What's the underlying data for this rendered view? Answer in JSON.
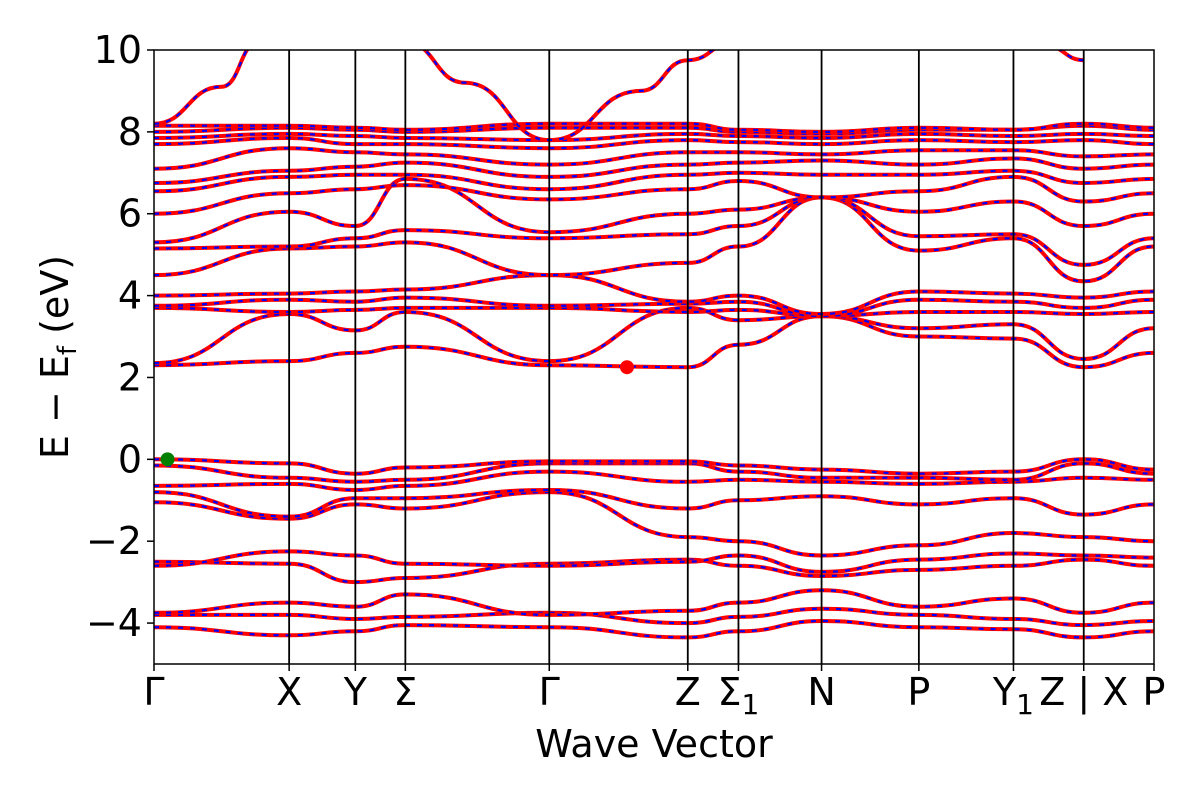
{
  "chart_data": {
    "type": "line",
    "xlabel": "Wave Vector",
    "ylabel": "E − E",
    "ylabel_sub": "f",
    "ylabel_unit": " (eV)",
    "ylim": [
      -5,
      10
    ],
    "yticks": [
      {
        "value": 10,
        "label": "10"
      },
      {
        "value": 8,
        "label": "8"
      },
      {
        "value": 6,
        "label": "6"
      },
      {
        "value": 4,
        "label": "4"
      },
      {
        "value": 2,
        "label": "2"
      },
      {
        "value": 0,
        "label": "0"
      },
      {
        "value": -2,
        "label": "−2"
      },
      {
        "value": -4,
        "label": "−4"
      }
    ],
    "xlim": [
      0,
      14.8
    ],
    "kpoints": [
      {
        "k": 0.0,
        "label": "Γ",
        "sub": ""
      },
      {
        "k": 2.0,
        "label": "X",
        "sub": ""
      },
      {
        "k": 2.98,
        "label": "Y",
        "sub": ""
      },
      {
        "k": 3.72,
        "label": "Σ",
        "sub": ""
      },
      {
        "k": 5.85,
        "label": "Γ",
        "sub": ""
      },
      {
        "k": 7.9,
        "label": "Z",
        "sub": ""
      },
      {
        "k": 8.65,
        "label": "Σ",
        "sub": "1"
      },
      {
        "k": 9.88,
        "label": "N",
        "sub": ""
      },
      {
        "k": 11.32,
        "label": "P",
        "sub": ""
      },
      {
        "k": 12.72,
        "label": "Y",
        "sub": "1"
      },
      {
        "k": 13.76,
        "label": "Z | X",
        "sub": ""
      },
      {
        "k": 14.8,
        "label": "P",
        "sub": ""
      }
    ],
    "bands": [
      {
        "k": [
          0,
          2.0,
          2.98,
          3.72,
          5.85,
          7.9,
          8.65,
          9.88,
          11.32,
          12.72,
          13.76,
          14.8
        ],
        "E": [
          -4.1,
          -4.3,
          -4.2,
          -4.05,
          -4.1,
          -4.35,
          -4.2,
          -3.95,
          -4.1,
          -4.15,
          -4.35,
          -4.2
        ]
      },
      {
        "k": [
          0,
          2.0,
          2.98,
          3.72,
          5.85,
          7.9,
          8.65,
          9.88,
          11.32,
          12.72,
          13.76,
          14.8
        ],
        "E": [
          -3.8,
          -3.8,
          -3.9,
          -3.85,
          -3.75,
          -4.0,
          -3.85,
          -3.65,
          -3.8,
          -3.9,
          -4.05,
          -3.95
        ]
      },
      {
        "k": [
          0,
          2.0,
          2.98,
          3.72,
          5.85,
          7.9,
          8.65,
          9.88,
          11.32,
          12.72,
          13.76,
          14.8
        ],
        "E": [
          -3.75,
          -3.5,
          -3.6,
          -3.3,
          -3.8,
          -3.7,
          -3.5,
          -3.2,
          -3.6,
          -3.4,
          -3.75,
          -3.5
        ]
      },
      {
        "k": [
          0,
          2.0,
          2.98,
          3.72,
          5.85,
          7.9,
          8.65,
          9.88,
          11.32,
          12.72,
          13.76,
          14.8
        ],
        "E": [
          -2.5,
          -2.55,
          -3.0,
          -2.9,
          -2.55,
          -2.45,
          -2.6,
          -2.85,
          -2.7,
          -2.6,
          -2.45,
          -2.6
        ]
      },
      {
        "k": [
          0,
          2.0,
          2.98,
          3.72,
          5.85,
          7.9,
          8.65,
          9.88,
          11.32,
          12.72,
          13.76,
          14.8
        ],
        "E": [
          -2.6,
          -2.25,
          -2.35,
          -2.55,
          -2.6,
          -2.5,
          -2.35,
          -2.75,
          -2.45,
          -2.3,
          -2.35,
          -2.4
        ]
      },
      {
        "k": [
          0,
          2.0,
          2.98,
          3.72,
          5.85,
          7.9,
          8.65,
          9.88,
          11.32,
          12.72,
          13.76,
          14.8
        ],
        "E": [
          -1.05,
          -1.45,
          -1.1,
          -1.2,
          -0.8,
          -1.9,
          -2.0,
          -2.35,
          -2.1,
          -1.8,
          -1.9,
          -2.0
        ]
      },
      {
        "k": [
          0,
          2.0,
          2.98,
          3.72,
          5.85,
          7.9,
          8.65,
          9.88,
          11.32,
          12.72,
          13.76,
          14.8
        ],
        "E": [
          -0.8,
          -1.4,
          -0.95,
          -0.95,
          -0.75,
          -1.2,
          -1.0,
          -0.9,
          -1.1,
          -0.95,
          -1.35,
          -1.1
        ]
      },
      {
        "k": [
          0,
          2.0,
          2.98,
          3.72,
          5.85,
          7.9,
          8.65,
          9.88,
          11.32,
          12.72,
          13.76,
          14.8
        ],
        "E": [
          -0.65,
          -0.6,
          -0.75,
          -0.65,
          -0.3,
          -0.55,
          -0.5,
          -0.55,
          -0.6,
          -0.55,
          -0.45,
          -0.5
        ]
      },
      {
        "k": [
          0,
          2.0,
          2.98,
          3.72,
          5.85,
          7.9,
          8.65,
          9.88,
          11.32,
          12.72,
          13.76,
          14.8
        ],
        "E": [
          -0.15,
          -0.45,
          -0.55,
          -0.5,
          -0.1,
          -0.1,
          -0.3,
          -0.45,
          -0.45,
          -0.5,
          -0.1,
          -0.35
        ]
      },
      {
        "k": [
          0,
          2.0,
          2.98,
          3.72,
          5.85,
          7.9,
          8.65,
          9.88,
          11.32,
          12.72,
          13.76,
          14.8
        ],
        "E": [
          0.0,
          -0.1,
          -0.35,
          -0.2,
          -0.05,
          -0.05,
          -0.15,
          -0.25,
          -0.35,
          -0.3,
          0.0,
          -0.25
        ]
      },
      {
        "k": [
          0,
          2.0,
          2.98,
          3.72,
          5.85,
          7.9,
          8.65,
          9.88,
          11.32,
          12.72,
          13.76,
          14.8
        ],
        "E": [
          2.3,
          2.4,
          2.6,
          2.75,
          2.3,
          2.25,
          2.8,
          3.5,
          3.0,
          2.95,
          2.25,
          2.6
        ]
      },
      {
        "k": [
          0,
          2.0,
          2.98,
          3.72,
          5.85,
          7.9,
          8.65,
          9.88,
          11.32,
          12.72,
          13.76,
          14.8
        ],
        "E": [
          2.35,
          3.55,
          3.15,
          3.6,
          2.4,
          3.7,
          3.4,
          3.5,
          3.2,
          3.3,
          2.45,
          3.2
        ]
      },
      {
        "k": [
          0,
          2.0,
          2.98,
          3.72,
          5.85,
          7.9,
          8.65,
          9.88,
          11.32,
          12.72,
          13.76,
          14.8
        ],
        "E": [
          3.7,
          3.6,
          3.65,
          3.7,
          3.7,
          3.6,
          3.65,
          3.5,
          3.6,
          3.6,
          3.55,
          3.6
        ]
      },
      {
        "k": [
          0,
          2.0,
          2.98,
          3.72,
          5.85,
          7.9,
          8.65,
          9.88,
          11.32,
          12.72,
          13.76,
          14.8
        ],
        "E": [
          3.75,
          3.9,
          3.85,
          3.95,
          3.75,
          3.8,
          3.85,
          3.5,
          3.9,
          3.85,
          3.7,
          3.9
        ]
      },
      {
        "k": [
          0,
          2.0,
          2.98,
          3.72,
          5.85,
          7.9,
          8.65,
          9.88,
          11.32,
          12.72,
          13.76,
          14.8
        ],
        "E": [
          4.0,
          4.05,
          4.1,
          4.15,
          4.5,
          3.85,
          4.0,
          3.55,
          4.1,
          4.05,
          3.95,
          4.1
        ]
      },
      {
        "k": [
          0,
          2.0,
          2.98,
          3.72,
          5.85,
          7.9,
          8.65,
          9.88,
          11.32,
          12.72,
          13.76,
          14.8
        ],
        "E": [
          4.5,
          5.15,
          5.2,
          5.3,
          4.5,
          4.8,
          5.2,
          6.4,
          5.1,
          5.4,
          4.35,
          5.2
        ]
      },
      {
        "k": [
          0,
          2.0,
          2.98,
          3.72,
          5.85,
          7.9,
          8.65,
          9.88,
          11.32,
          12.72,
          13.76,
          14.8
        ],
        "E": [
          5.15,
          5.2,
          5.4,
          5.6,
          5.4,
          5.5,
          5.7,
          6.4,
          5.45,
          5.5,
          4.75,
          5.4
        ]
      },
      {
        "k": [
          0,
          2.0,
          2.98,
          3.72,
          5.85,
          7.9,
          8.65,
          9.88,
          11.32,
          12.72,
          13.76,
          14.8
        ],
        "E": [
          5.3,
          6.05,
          5.7,
          6.85,
          5.55,
          6.0,
          6.1,
          6.4,
          6.05,
          6.3,
          5.7,
          6.0
        ]
      },
      {
        "k": [
          0,
          2.0,
          2.98,
          3.72,
          5.85,
          7.9,
          8.65,
          9.88,
          11.32,
          12.72,
          13.76,
          14.8
        ],
        "E": [
          6.0,
          6.5,
          6.6,
          6.7,
          6.35,
          6.6,
          6.8,
          6.4,
          6.55,
          6.9,
          6.3,
          6.5
        ]
      },
      {
        "k": [
          0,
          2.0,
          2.98,
          3.72,
          5.85,
          7.9,
          8.65,
          9.88,
          11.32,
          12.72,
          13.76,
          14.8
        ],
        "E": [
          6.55,
          6.9,
          6.95,
          6.95,
          6.6,
          6.95,
          7.0,
          6.95,
          6.95,
          7.05,
          6.75,
          6.85
        ]
      },
      {
        "k": [
          0,
          2.0,
          2.98,
          3.72,
          5.85,
          7.9,
          8.65,
          9.88,
          11.32,
          12.72,
          13.76,
          14.8
        ],
        "E": [
          6.75,
          7.05,
          7.15,
          7.25,
          6.9,
          7.2,
          7.25,
          7.3,
          7.2,
          7.35,
          7.1,
          7.2
        ]
      },
      {
        "k": [
          0,
          2.0,
          2.98,
          3.72,
          5.85,
          7.9,
          8.65,
          9.88,
          11.32,
          12.72,
          13.76,
          14.8
        ],
        "E": [
          7.1,
          7.6,
          7.5,
          7.45,
          7.2,
          7.5,
          7.5,
          7.45,
          7.55,
          7.55,
          7.4,
          7.45
        ]
      },
      {
        "k": [
          0,
          2.0,
          2.98,
          3.72,
          5.85,
          7.9,
          8.65,
          9.88,
          11.32,
          12.72,
          13.76,
          14.8
        ],
        "E": [
          7.7,
          7.85,
          7.7,
          7.7,
          7.6,
          7.8,
          7.75,
          7.7,
          7.8,
          7.75,
          7.8,
          7.7
        ]
      },
      {
        "k": [
          0,
          2.0,
          2.98,
          3.72,
          5.85,
          7.9,
          8.65,
          9.88,
          11.32,
          12.72,
          13.76,
          14.8
        ],
        "E": [
          7.85,
          7.95,
          7.9,
          7.85,
          7.8,
          7.95,
          7.9,
          7.85,
          7.95,
          7.9,
          7.95,
          7.9
        ]
      },
      {
        "k": [
          0,
          2.0,
          2.98,
          3.72,
          5.85,
          7.9,
          8.65,
          9.88,
          11.32,
          12.72,
          13.76,
          14.8
        ],
        "E": [
          8.0,
          8.1,
          8.05,
          8.0,
          8.1,
          8.1,
          8.0,
          7.95,
          8.05,
          8.05,
          8.15,
          8.05
        ]
      },
      {
        "k": [
          0,
          2.0,
          2.98,
          3.72,
          5.85,
          7.9,
          8.65,
          9.88,
          11.32,
          12.72,
          13.76,
          14.8
        ],
        "E": [
          8.15,
          8.15,
          8.1,
          8.05,
          8.2,
          8.2,
          8.05,
          8.0,
          8.1,
          8.05,
          8.2,
          8.1
        ]
      },
      {
        "k": [
          0,
          1.0,
          1.55
        ],
        "E": [
          8.2,
          9.1,
          10.2
        ]
      },
      {
        "k": [
          3.72,
          4.6,
          5.85,
          7.2,
          7.9,
          8.6
        ],
        "E": [
          10.2,
          9.2,
          7.8,
          9.0,
          9.75,
          10.2
        ]
      },
      {
        "k": [
          13.2,
          13.76
        ],
        "E": [
          10.1,
          9.75
        ]
      }
    ],
    "markers": [
      {
        "name": "VBM",
        "k": 0.2,
        "E": 0.0,
        "color": "#008000"
      },
      {
        "name": "CBM",
        "k": 7.0,
        "E": 2.25,
        "color": "#ff0000"
      }
    ],
    "colors": {
      "band_primary": "#ff0000",
      "band_secondary": "#0000ff",
      "axis": "#000000"
    }
  }
}
